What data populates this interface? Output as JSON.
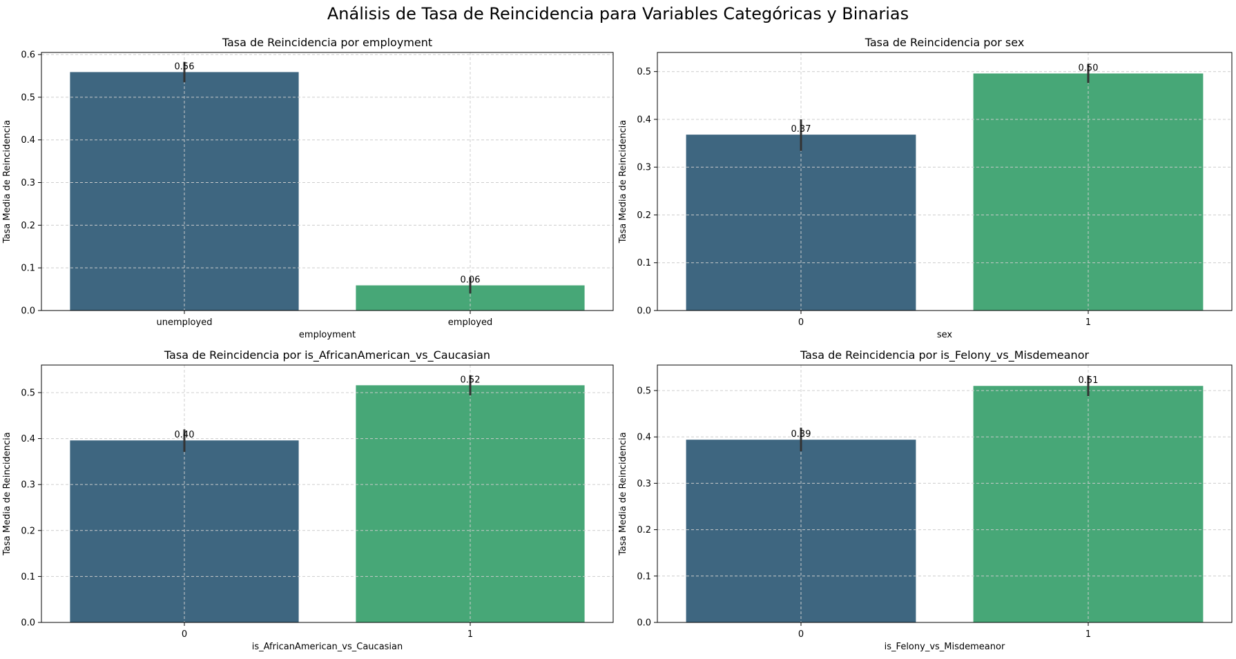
{
  "figure": {
    "suptitle": "Análisis de Tasa de Reincidencia para Variables Categóricas y Binarias"
  },
  "colors": {
    "bar_1": "#3e6680",
    "bar_2": "#47a777",
    "grid": "#cccccc",
    "errorbar": "#333333"
  },
  "chart_data": [
    {
      "type": "bar",
      "title": "Tasa de Reincidencia por employment",
      "xlabel": "employment",
      "ylabel": "Tasa Media de Reincidencia",
      "categories": [
        "unemployed",
        "employed"
      ],
      "values": [
        0.559,
        0.059
      ],
      "value_labels": [
        "0.56",
        "0.06"
      ],
      "error_bars": [
        [
          0.535,
          0.583
        ],
        [
          0.04,
          0.078
        ]
      ],
      "ylim": [
        0,
        0.605
      ],
      "yticks": [
        0.0,
        0.1,
        0.2,
        0.3,
        0.4,
        0.5,
        0.6
      ],
      "ytick_labels": [
        "0.0",
        "0.1",
        "0.2",
        "0.3",
        "0.4",
        "0.5",
        "0.6"
      ],
      "grid": true
    },
    {
      "type": "bar",
      "title": "Tasa de Reincidencia por sex",
      "xlabel": "sex",
      "ylabel": "Tasa Media de Reincidencia",
      "categories": [
        "0",
        "1"
      ],
      "values": [
        0.368,
        0.496
      ],
      "value_labels": [
        "0.37",
        "0.50"
      ],
      "error_bars": [
        [
          0.334,
          0.4
        ],
        [
          0.476,
          0.516
        ]
      ],
      "ylim": [
        0,
        0.54
      ],
      "yticks": [
        0.0,
        0.1,
        0.2,
        0.3,
        0.4,
        0.5
      ],
      "ytick_labels": [
        "0.0",
        "0.1",
        "0.2",
        "0.3",
        "0.4",
        "0.5"
      ],
      "grid": true
    },
    {
      "type": "bar",
      "title": "Tasa de Reincidencia por is_AfricanAmerican_vs_Caucasian",
      "xlabel": "is_AfricanAmerican_vs_Caucasian",
      "ylabel": "Tasa Media de Reincidencia",
      "categories": [
        "0",
        "1"
      ],
      "values": [
        0.396,
        0.516
      ],
      "value_labels": [
        "0.40",
        "0.52"
      ],
      "error_bars": [
        [
          0.371,
          0.42
        ],
        [
          0.494,
          0.538
        ]
      ],
      "ylim": [
        0,
        0.56
      ],
      "yticks": [
        0.0,
        0.1,
        0.2,
        0.3,
        0.4,
        0.5
      ],
      "ytick_labels": [
        "0.0",
        "0.1",
        "0.2",
        "0.3",
        "0.4",
        "0.5"
      ],
      "grid": true
    },
    {
      "type": "bar",
      "title": "Tasa de Reincidencia por is_Felony_vs_Misdemeanor",
      "xlabel": "is_Felony_vs_Misdemeanor",
      "ylabel": "Tasa Media de Reincidencia",
      "categories": [
        "0",
        "1"
      ],
      "values": [
        0.394,
        0.51
      ],
      "value_labels": [
        "0.39",
        "0.51"
      ],
      "error_bars": [
        [
          0.369,
          0.42
        ],
        [
          0.488,
          0.532
        ]
      ],
      "ylim": [
        0,
        0.555
      ],
      "yticks": [
        0.0,
        0.1,
        0.2,
        0.3,
        0.4,
        0.5
      ],
      "ytick_labels": [
        "0.0",
        "0.1",
        "0.2",
        "0.3",
        "0.4",
        "0.5"
      ],
      "grid": true
    }
  ]
}
